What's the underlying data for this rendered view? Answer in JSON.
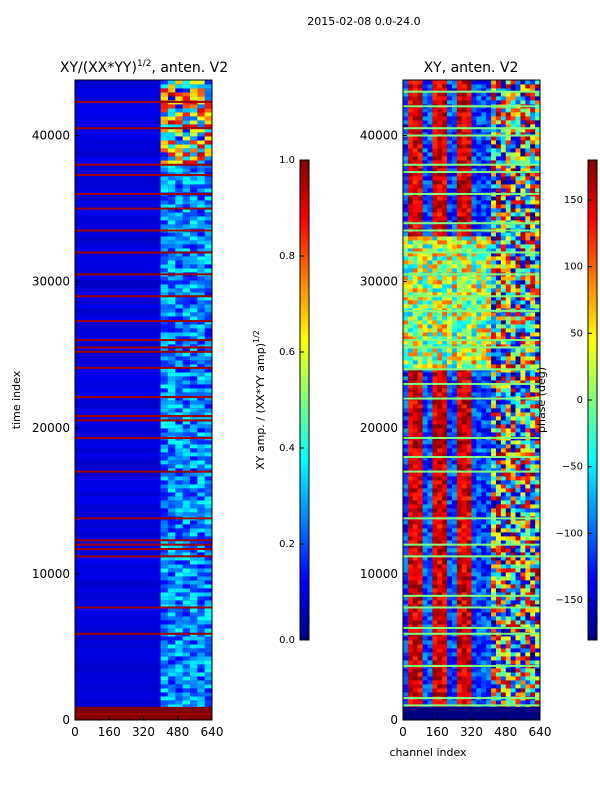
{
  "suptitle": "2015-02-08 0.0-24.0",
  "chart_data": [
    {
      "type": "heatmap",
      "title_prefix": "XY/(XX*YY)",
      "title_exp": "1/2",
      "title_suffix": ", anten. V2",
      "xlabel": "",
      "ylabel": "time index",
      "xlim": [
        0,
        640
      ],
      "ylim": [
        0,
        43800
      ],
      "xticks": [
        0,
        160,
        320,
        480,
        640
      ],
      "yticks": [
        0,
        10000,
        20000,
        30000,
        40000
      ],
      "colorbar": {
        "label_main": "XY amp. / (XX*YY amp)",
        "label_exp": "1/2",
        "range": [
          0.0,
          1.0
        ],
        "ticks": [
          "0.0",
          "0.2",
          "0.4",
          "0.6",
          "0.8",
          "1.0"
        ]
      },
      "flagged_rows": [
        400,
        5900,
        7700,
        11200,
        11700,
        12000,
        12300,
        13800,
        17000,
        19300,
        20500,
        20800,
        22100,
        24100,
        25200,
        25500,
        26000,
        27300,
        29000,
        30500,
        32000,
        33500,
        35000,
        36000,
        37300,
        38000,
        40500,
        42300
      ],
      "bright_band_channel_start": 400
    },
    {
      "type": "heatmap",
      "title": "XY, anten. V2",
      "xlabel": "channel index",
      "ylabel": "",
      "xlim": [
        0,
        640
      ],
      "ylim": [
        0,
        43800
      ],
      "xticks": [
        0,
        160,
        320,
        480,
        640
      ],
      "yticks": [
        0,
        10000,
        20000,
        30000,
        40000
      ],
      "colorbar": {
        "label": "phase (deg)",
        "range": [
          -180,
          180
        ],
        "ticks": [
          "150",
          "100",
          "50",
          "0",
          "−50",
          "−100",
          "−150"
        ]
      },
      "red_stripe_channels": [
        60,
        170,
        290
      ],
      "flagged_rows": [
        1000,
        1500,
        3700,
        5900,
        6300,
        7700,
        8500,
        11200,
        12000,
        13800,
        17000,
        18000,
        19300,
        22000,
        23000,
        24000,
        25500,
        26000,
        28000,
        29000,
        30500,
        32000,
        33500,
        34000,
        36000,
        37500,
        38000,
        40000,
        40500,
        42000,
        43000
      ]
    }
  ]
}
